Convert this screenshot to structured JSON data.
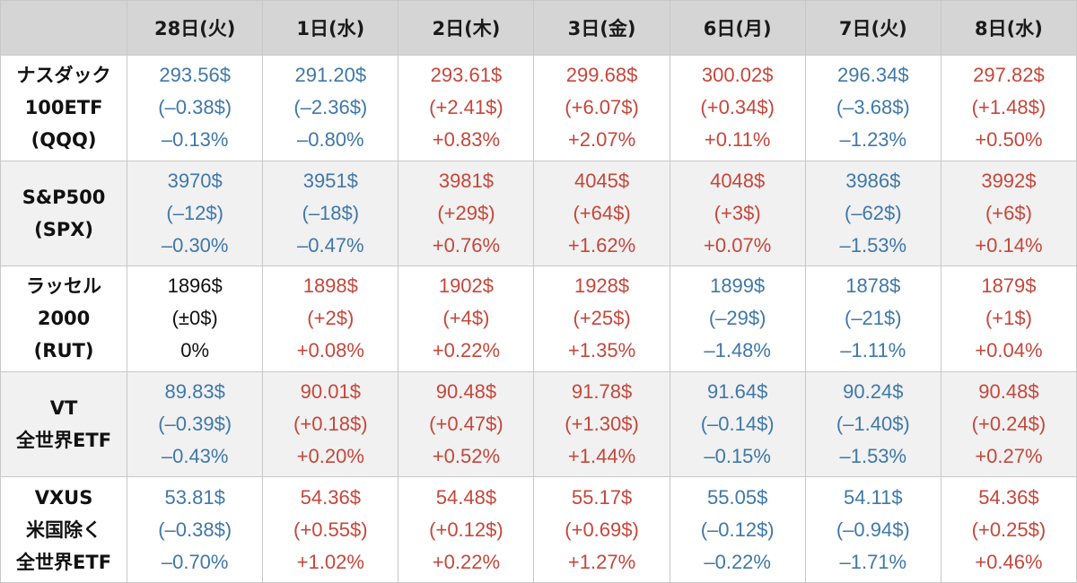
{
  "colors": {
    "up": "#c5473b",
    "down": "#3f78a8",
    "flat": "#111111",
    "header_bg": "#d5d5d5",
    "alt_row_bg": "#f1f1f1"
  },
  "header": {
    "corner": "",
    "days": [
      "28日(火)",
      "1日(水)",
      "2日(木)",
      "3日(金)",
      "6日(月)",
      "7日(火)",
      "8日(水)"
    ]
  },
  "rows": [
    {
      "label": [
        "ナスダック",
        "100ETF",
        "(QQQ)"
      ],
      "cells": [
        {
          "price": "293.56$",
          "change": "(–0.38$)",
          "pct": "–0.13%",
          "trend": "down"
        },
        {
          "price": "291.20$",
          "change": "(–2.36$)",
          "pct": "–0.80%",
          "trend": "down"
        },
        {
          "price": "293.61$",
          "change": "(+2.41$)",
          "pct": "+0.83%",
          "trend": "up"
        },
        {
          "price": "299.68$",
          "change": "(+6.07$)",
          "pct": "+2.07%",
          "trend": "up"
        },
        {
          "price": "300.02$",
          "change": "(+0.34$)",
          "pct": "+0.11%",
          "trend": "up"
        },
        {
          "price": "296.34$",
          "change": "(–3.68$)",
          "pct": "–1.23%",
          "trend": "down"
        },
        {
          "price": "297.82$",
          "change": "(+1.48$)",
          "pct": "+0.50%",
          "trend": "up"
        }
      ]
    },
    {
      "label": [
        "S&P500",
        "(SPX)"
      ],
      "cells": [
        {
          "price": "3970$",
          "change": "(–12$)",
          "pct": "–0.30%",
          "trend": "down"
        },
        {
          "price": "3951$",
          "change": "(–18$)",
          "pct": "–0.47%",
          "trend": "down"
        },
        {
          "price": "3981$",
          "change": "(+29$)",
          "pct": "+0.76%",
          "trend": "up"
        },
        {
          "price": "4045$",
          "change": "(+64$)",
          "pct": "+1.62%",
          "trend": "up"
        },
        {
          "price": "4048$",
          "change": "(+3$)",
          "pct": "+0.07%",
          "trend": "up"
        },
        {
          "price": "3986$",
          "change": "(–62$)",
          "pct": "–1.53%",
          "trend": "down"
        },
        {
          "price": "3992$",
          "change": "(+6$)",
          "pct": "+0.14%",
          "trend": "up"
        }
      ]
    },
    {
      "label": [
        "ラッセル",
        "2000",
        "(RUT)"
      ],
      "cells": [
        {
          "price": "1896$",
          "change": "(±0$)",
          "pct": "0%",
          "trend": "flat"
        },
        {
          "price": "1898$",
          "change": "(+2$)",
          "pct": "+0.08%",
          "trend": "up"
        },
        {
          "price": "1902$",
          "change": "(+4$)",
          "pct": "+0.22%",
          "trend": "up"
        },
        {
          "price": "1928$",
          "change": "(+25$)",
          "pct": "+1.35%",
          "trend": "up"
        },
        {
          "price": "1899$",
          "change": "(–29$)",
          "pct": "–1.48%",
          "trend": "down"
        },
        {
          "price": "1878$",
          "change": "(–21$)",
          "pct": "–1.11%",
          "trend": "down"
        },
        {
          "price": "1879$",
          "change": "(+1$)",
          "pct": "+0.04%",
          "trend": "up"
        }
      ]
    },
    {
      "label": [
        "VT",
        "全世界ETF"
      ],
      "cells": [
        {
          "price": "89.83$",
          "change": "(–0.39$)",
          "pct": "–0.43%",
          "trend": "down"
        },
        {
          "price": "90.01$",
          "change": "(+0.18$)",
          "pct": "+0.20%",
          "trend": "up"
        },
        {
          "price": "90.48$",
          "change": "(+0.47$)",
          "pct": "+0.52%",
          "trend": "up"
        },
        {
          "price": "91.78$",
          "change": "(+1.30$)",
          "pct": "+1.44%",
          "trend": "up"
        },
        {
          "price": "91.64$",
          "change": "(–0.14$)",
          "pct": "–0.15%",
          "trend": "down"
        },
        {
          "price": "90.24$",
          "change": "(–1.40$)",
          "pct": "–1.53%",
          "trend": "down"
        },
        {
          "price": "90.48$",
          "change": "(+0.24$)",
          "pct": "+0.27%",
          "trend": "up"
        }
      ]
    },
    {
      "label": [
        "VXUS",
        "米国除く",
        "全世界ETF"
      ],
      "cells": [
        {
          "price": "53.81$",
          "change": "(–0.38$)",
          "pct": "–0.70%",
          "trend": "down"
        },
        {
          "price": "54.36$",
          "change": "(+0.55$)",
          "pct": "+1.02%",
          "trend": "up"
        },
        {
          "price": "54.48$",
          "change": "(+0.12$)",
          "pct": "+0.22%",
          "trend": "up"
        },
        {
          "price": "55.17$",
          "change": "(+0.69$)",
          "pct": "+1.27%",
          "trend": "up"
        },
        {
          "price": "55.05$",
          "change": "(–0.12$)",
          "pct": "–0.22%",
          "trend": "down"
        },
        {
          "price": "54.11$",
          "change": "(–0.94$)",
          "pct": "–1.71%",
          "trend": "down"
        },
        {
          "price": "54.36$",
          "change": "(+0.25$)",
          "pct": "+0.46%",
          "trend": "up"
        }
      ]
    }
  ]
}
